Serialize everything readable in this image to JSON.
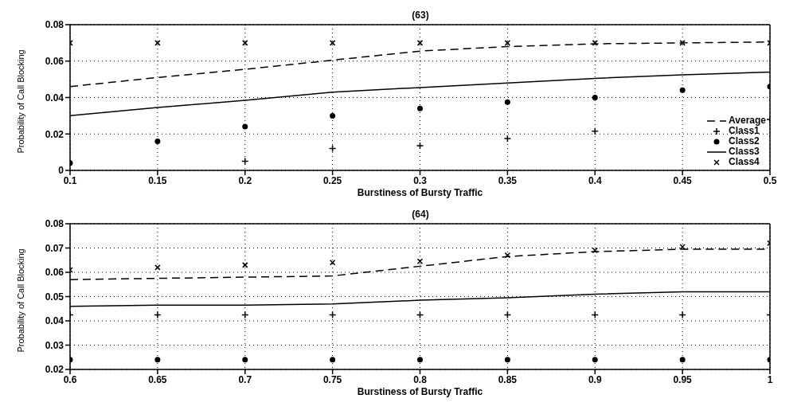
{
  "chart_data": [
    {
      "type": "line",
      "title": "(63)",
      "xlabel": "Burstiness of Bursty Traffic",
      "ylabel": "Probability of Call Blocking",
      "x": [
        0.1,
        0.15,
        0.2,
        0.25,
        0.3,
        0.35,
        0.4,
        0.45,
        0.5
      ],
      "xlim": [
        0.1,
        0.5
      ],
      "xticks": [
        0.1,
        0.15,
        0.2,
        0.25,
        0.3,
        0.35,
        0.4,
        0.45,
        0.5
      ],
      "ylim": [
        0,
        0.08
      ],
      "yticks": [
        0,
        0.02,
        0.04,
        0.06,
        0.08
      ],
      "grid": true,
      "legend": "bottom right",
      "series": [
        {
          "name": "Average",
          "line_style": "dashed",
          "color": "#000000",
          "values": [
            0.046,
            0.051,
            0.0555,
            0.0605,
            0.0655,
            0.068,
            0.0695,
            0.07,
            0.0705
          ]
        },
        {
          "name": "Class1",
          "type": "scatter",
          "marker": "cross",
          "color": "#000000",
          "values": [
            null,
            null,
            0.005,
            0.012,
            0.0135,
            0.0175,
            0.0215,
            null,
            0.028
          ]
        },
        {
          "name": "Class2",
          "type": "scatter",
          "marker": "circle",
          "color": "#000000",
          "values": [
            0.004,
            0.016,
            0.024,
            0.03,
            0.034,
            0.0375,
            0.04,
            0.044,
            0.046
          ]
        },
        {
          "name": "Class3",
          "line_style": "solid",
          "color": "#000000",
          "values": [
            0.03,
            0.0345,
            0.0385,
            0.043,
            0.0455,
            0.048,
            0.0505,
            0.0525,
            0.054
          ]
        },
        {
          "name": "Class4",
          "type": "scatter",
          "marker": "x",
          "color": "#000000",
          "values": [
            0.07,
            0.07,
            0.07,
            0.07,
            0.07,
            0.07,
            0.07,
            0.07,
            0.07
          ]
        }
      ]
    },
    {
      "type": "line",
      "title": "(64)",
      "xlabel": "Burstiness of Bursty Traffic",
      "ylabel": "Probability of Call Blocking",
      "x": [
        0.6,
        0.65,
        0.7,
        0.75,
        0.8,
        0.85,
        0.9,
        0.95,
        1
      ],
      "xlim": [
        0.6,
        1
      ],
      "xticks": [
        0.6,
        0.65,
        0.7,
        0.75,
        0.8,
        0.85,
        0.9,
        0.95,
        1
      ],
      "ylim": [
        0.02,
        0.08
      ],
      "yticks": [
        0.02,
        0.03,
        0.04,
        0.05,
        0.06,
        0.07,
        0.08
      ],
      "grid": true,
      "series": [
        {
          "line_style": "dashed",
          "color": "#000000",
          "values": [
            0.057,
            0.0575,
            0.058,
            0.0585,
            0.0625,
            0.0665,
            0.0685,
            0.0695,
            0.0695
          ]
        },
        {
          "type": "scatter",
          "marker": "cross",
          "color": "#000000",
          "values": [
            0.0425,
            0.0425,
            0.0425,
            0.0425,
            0.0425,
            0.0425,
            0.0425,
            0.0425,
            0.0425
          ]
        },
        {
          "type": "scatter",
          "marker": "circle",
          "color": "#000000",
          "values": [
            0.024,
            0.024,
            0.024,
            0.024,
            0.024,
            0.024,
            0.024,
            0.024,
            0.024
          ]
        },
        {
          "line_style": "solid",
          "color": "#000000",
          "values": [
            0.046,
            0.0465,
            0.0465,
            0.047,
            0.0485,
            0.0495,
            0.051,
            0.052,
            0.052
          ]
        },
        {
          "type": "scatter",
          "marker": "x",
          "color": "#000000",
          "values": [
            0.061,
            0.062,
            0.063,
            0.064,
            0.0645,
            0.067,
            0.069,
            0.0705,
            0.072
          ]
        }
      ]
    }
  ]
}
